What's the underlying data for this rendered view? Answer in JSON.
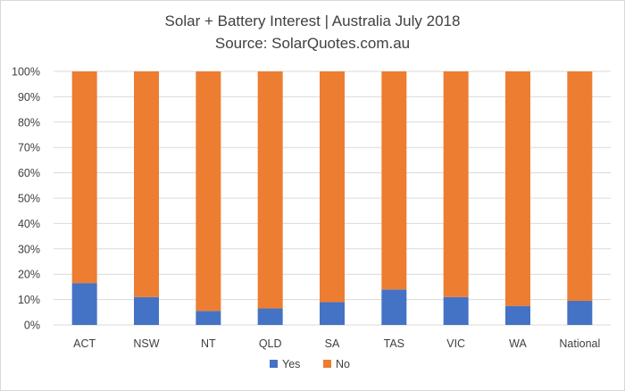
{
  "chart_data": {
    "type": "bar",
    "stacked": true,
    "normalized": true,
    "title": "Solar + Battery Interest  | Australia July 2018",
    "subtitle": "Source: SolarQuotes.com.au",
    "categories": [
      "ACT",
      "NSW",
      "NT",
      "QLD",
      "SA",
      "TAS",
      "VIC",
      "WA",
      "National"
    ],
    "series": [
      {
        "name": "Yes",
        "color": "#4472C4",
        "values": [
          16.5,
          11,
          5.5,
          6.5,
          9,
          14,
          11,
          7.5,
          9.5
        ]
      },
      {
        "name": "No",
        "color": "#ED7D31",
        "values": [
          83.5,
          89,
          94.5,
          93.5,
          91,
          86,
          89,
          92.5,
          90.5
        ]
      }
    ],
    "ylim": [
      0,
      100
    ],
    "yticks": [
      "0%",
      "10%",
      "20%",
      "30%",
      "40%",
      "50%",
      "60%",
      "70%",
      "80%",
      "90%",
      "100%"
    ],
    "grid": true,
    "legend": "bottom"
  }
}
